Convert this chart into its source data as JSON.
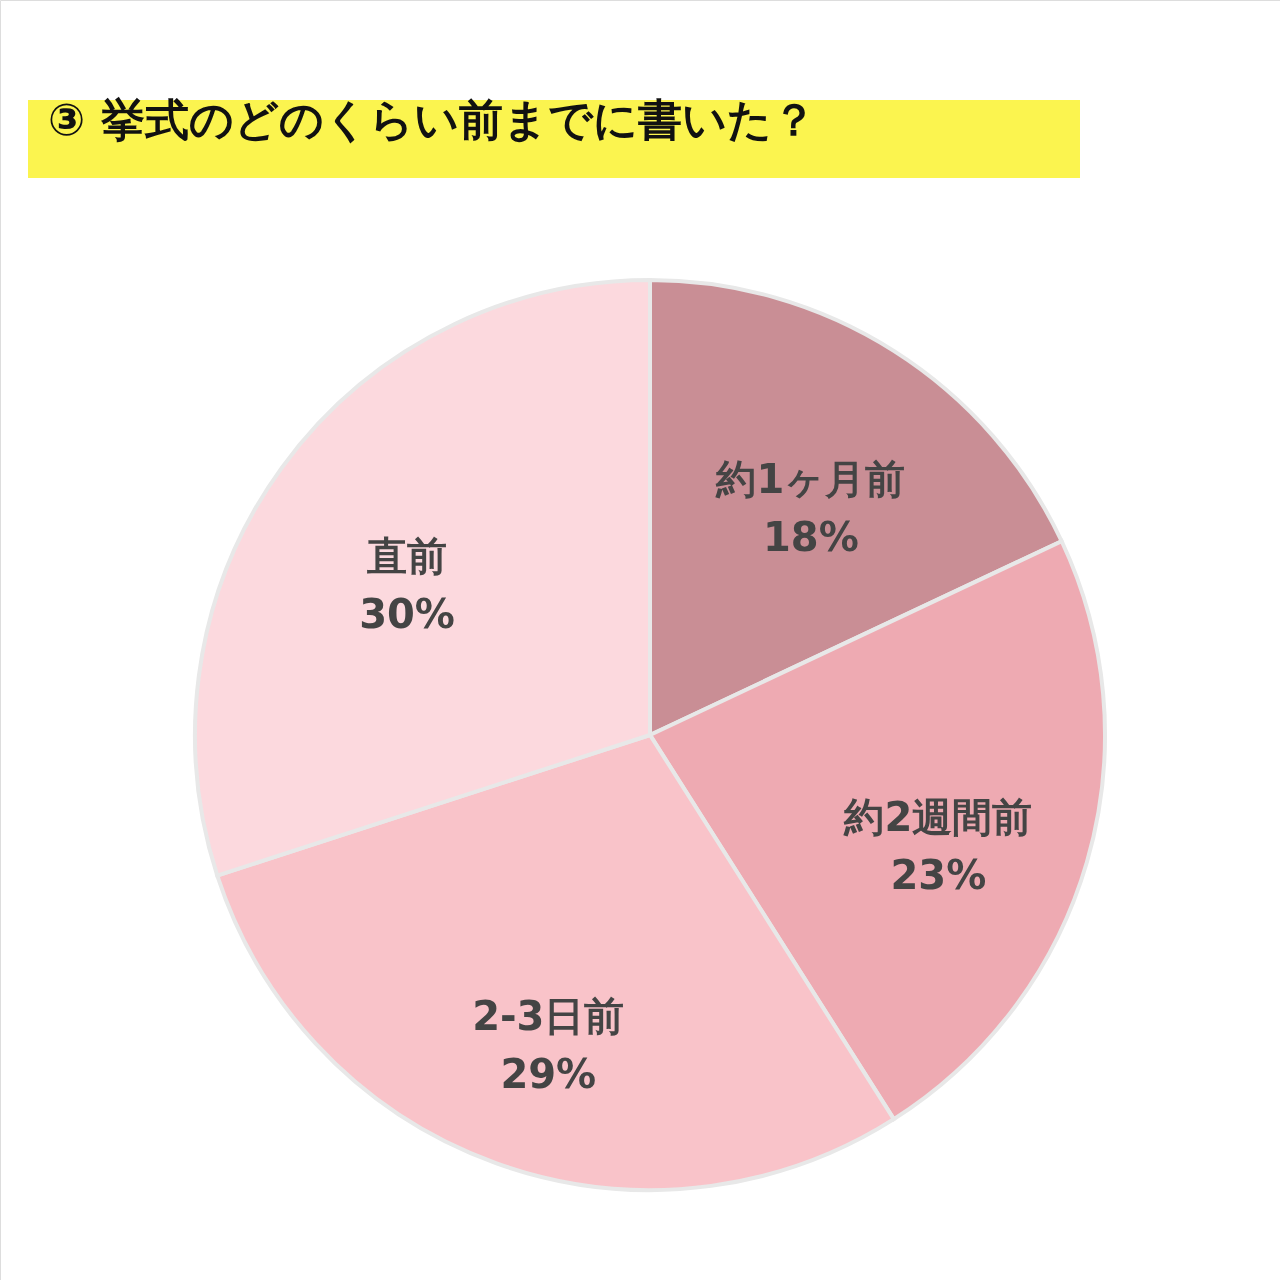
{
  "chart_data": {
    "type": "pie",
    "title": "③ 挙式のどのくらい前までに書いた？",
    "categories": [
      "約1ヶ月前",
      "約2週間前",
      "2-3日前",
      "直前"
    ],
    "values": [
      18,
      23,
      29,
      30
    ],
    "value_labels": [
      "18%",
      "23%",
      "29%",
      "30%"
    ],
    "colors": [
      "#c98e95",
      "#eeaab2",
      "#f9c3c9",
      "#fcd9de"
    ]
  }
}
